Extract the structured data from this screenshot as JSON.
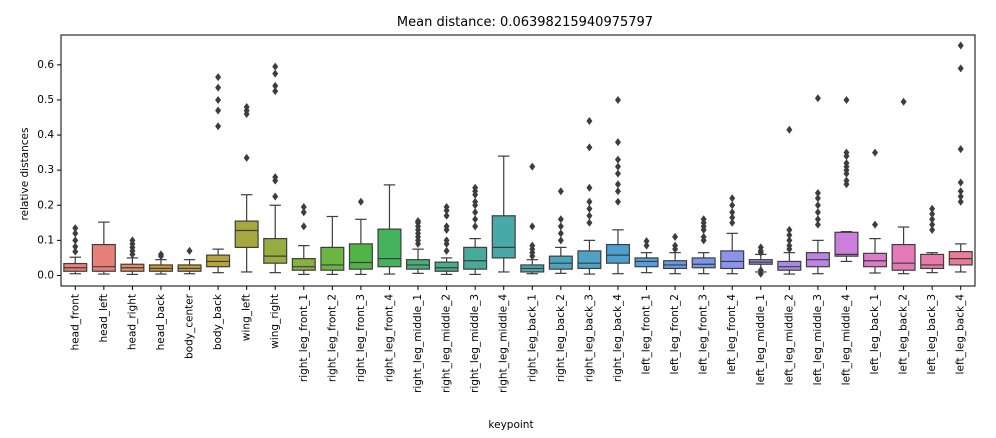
{
  "chart_data": {
    "type": "box",
    "title": "Mean distance: 0.06398215940975797",
    "xlabel": "keypoint",
    "ylabel": "relative distances",
    "ylim": [
      -0.03,
      0.685
    ],
    "yticks": [
      "0.0",
      "0.1",
      "0.2",
      "0.3",
      "0.4",
      "0.5",
      "0.6"
    ],
    "grid": false,
    "series": [
      {
        "name": "head_front",
        "color": "#e8807a",
        "whislo": 0.005,
        "q1": 0.012,
        "med": 0.022,
        "q3": 0.034,
        "whishi": 0.052,
        "fliers": [
          0.068,
          0.082,
          0.1,
          0.12,
          0.135
        ]
      },
      {
        "name": "head_left",
        "color": "#e8807a",
        "whislo": 0.004,
        "q1": 0.012,
        "med": 0.025,
        "q3": 0.088,
        "whishi": 0.152,
        "fliers": []
      },
      {
        "name": "head_right",
        "color": "#df8f63",
        "whislo": 0.003,
        "q1": 0.012,
        "med": 0.022,
        "q3": 0.032,
        "whishi": 0.05,
        "fliers": [
          0.06,
          0.07,
          0.08,
          0.09,
          0.1
        ]
      },
      {
        "name": "head_back",
        "color": "#c8982f",
        "whislo": 0.004,
        "q1": 0.012,
        "med": 0.02,
        "q3": 0.03,
        "whishi": 0.045,
        "fliers": [
          0.055,
          0.06
        ]
      },
      {
        "name": "body_center",
        "color": "#c29d39",
        "whislo": 0.005,
        "q1": 0.012,
        "med": 0.02,
        "q3": 0.03,
        "whishi": 0.045,
        "fliers": [
          0.07
        ]
      },
      {
        "name": "body_back",
        "color": "#b9a33d",
        "whislo": 0.008,
        "q1": 0.025,
        "med": 0.04,
        "q3": 0.058,
        "whishi": 0.075,
        "fliers": [
          0.425,
          0.47,
          0.5,
          0.535,
          0.565
        ]
      },
      {
        "name": "wing_left",
        "color": "#a5a93d",
        "whislo": 0.01,
        "q1": 0.08,
        "med": 0.128,
        "q3": 0.155,
        "whishi": 0.23,
        "fliers": [
          0.335,
          0.46,
          0.47,
          0.48
        ]
      },
      {
        "name": "wing_right",
        "color": "#97ad3f",
        "whislo": 0.008,
        "q1": 0.035,
        "med": 0.055,
        "q3": 0.105,
        "whishi": 0.2,
        "fliers": [
          0.225,
          0.27,
          0.28,
          0.525,
          0.54,
          0.575,
          0.595
        ]
      },
      {
        "name": "right_leg_front_1",
        "color": "#86b042",
        "whislo": 0.003,
        "q1": 0.015,
        "med": 0.025,
        "q3": 0.048,
        "whishi": 0.085,
        "fliers": [
          0.14,
          0.18,
          0.195
        ]
      },
      {
        "name": "right_leg_front_2",
        "color": "#6cb543",
        "whislo": 0.003,
        "q1": 0.015,
        "med": 0.03,
        "q3": 0.08,
        "whishi": 0.168,
        "fliers": []
      },
      {
        "name": "right_leg_front_3",
        "color": "#50b547",
        "whislo": 0.003,
        "q1": 0.018,
        "med": 0.037,
        "q3": 0.09,
        "whishi": 0.16,
        "fliers": [
          0.21
        ]
      },
      {
        "name": "right_leg_front_4",
        "color": "#44b35c",
        "whislo": 0.004,
        "q1": 0.025,
        "med": 0.048,
        "q3": 0.132,
        "whishi": 0.258,
        "fliers": []
      },
      {
        "name": "right_leg_middle_1",
        "color": "#46b07a",
        "whislo": 0.006,
        "q1": 0.018,
        "med": 0.03,
        "q3": 0.045,
        "whishi": 0.075,
        "fliers": [
          0.09,
          0.1,
          0.11,
          0.12,
          0.13,
          0.14,
          0.15,
          0.155
        ]
      },
      {
        "name": "right_leg_middle_2",
        "color": "#47ad8b",
        "whislo": 0.003,
        "q1": 0.012,
        "med": 0.022,
        "q3": 0.038,
        "whishi": 0.05,
        "fliers": [
          0.07,
          0.09,
          0.1,
          0.13,
          0.14,
          0.17,
          0.185,
          0.195
        ]
      },
      {
        "name": "right_leg_middle_3",
        "color": "#48ab99",
        "whislo": 0.003,
        "q1": 0.018,
        "med": 0.042,
        "q3": 0.08,
        "whishi": 0.105,
        "fliers": [
          0.14,
          0.16,
          0.18,
          0.2,
          0.21,
          0.23,
          0.24,
          0.25
        ]
      },
      {
        "name": "right_leg_middle_4",
        "color": "#49a9a6",
        "whislo": 0.01,
        "q1": 0.05,
        "med": 0.08,
        "q3": 0.17,
        "whishi": 0.34,
        "fliers": []
      },
      {
        "name": "right_leg_back_1",
        "color": "#4aa7b1",
        "whislo": 0.005,
        "q1": 0.01,
        "med": 0.02,
        "q3": 0.03,
        "whishi": 0.045,
        "fliers": [
          0.055,
          0.065,
          0.075,
          0.085,
          0.14,
          0.31
        ]
      },
      {
        "name": "right_leg_back_2",
        "color": "#4ba5bc",
        "whislo": 0.006,
        "q1": 0.018,
        "med": 0.035,
        "q3": 0.055,
        "whishi": 0.08,
        "fliers": [
          0.1,
          0.12,
          0.14,
          0.16,
          0.24
        ]
      },
      {
        "name": "right_leg_back_3",
        "color": "#4ca3c6",
        "whislo": 0.004,
        "q1": 0.02,
        "med": 0.035,
        "q3": 0.07,
        "whishi": 0.1,
        "fliers": [
          0.15,
          0.17,
          0.19,
          0.21,
          0.25,
          0.365,
          0.44
        ]
      },
      {
        "name": "right_leg_back_4",
        "color": "#4ea0d1",
        "whislo": 0.005,
        "q1": 0.035,
        "med": 0.058,
        "q3": 0.088,
        "whishi": 0.13,
        "fliers": [
          0.21,
          0.24,
          0.26,
          0.29,
          0.31,
          0.33,
          0.38,
          0.5
        ]
      },
      {
        "name": "left_leg_front_1",
        "color": "#569edc",
        "whislo": 0.008,
        "q1": 0.025,
        "med": 0.04,
        "q3": 0.05,
        "whishi": 0.065,
        "fliers": [
          0.085,
          0.098
        ]
      },
      {
        "name": "left_leg_front_2",
        "color": "#6b9ae4",
        "whislo": 0.005,
        "q1": 0.02,
        "med": 0.03,
        "q3": 0.042,
        "whishi": 0.065,
        "fliers": [
          0.075,
          0.085,
          0.11
        ]
      },
      {
        "name": "left_leg_front_3",
        "color": "#7c96e8",
        "whislo": 0.005,
        "q1": 0.022,
        "med": 0.032,
        "q3": 0.05,
        "whishi": 0.065,
        "fliers": [
          0.1,
          0.11,
          0.13,
          0.14,
          0.15,
          0.16
        ]
      },
      {
        "name": "left_leg_front_4",
        "color": "#8c93ea",
        "whislo": 0.005,
        "q1": 0.02,
        "med": 0.04,
        "q3": 0.07,
        "whishi": 0.12,
        "fliers": [
          0.15,
          0.165,
          0.18,
          0.2,
          0.22
        ]
      },
      {
        "name": "left_leg_middle_1",
        "color": "#9b8fea",
        "whislo": 0.01,
        "q1": 0.032,
        "med": 0.038,
        "q3": 0.045,
        "whishi": 0.06,
        "fliers": [
          0.005,
          0.015,
          0.065,
          0.07,
          0.08
        ]
      },
      {
        "name": "left_leg_middle_2",
        "color": "#ab8ae6",
        "whislo": 0.004,
        "q1": 0.015,
        "med": 0.025,
        "q3": 0.04,
        "whishi": 0.065,
        "fliers": [
          0.075,
          0.085,
          0.1,
          0.115,
          0.13,
          0.415
        ]
      },
      {
        "name": "left_leg_middle_3",
        "color": "#bc84e2",
        "whislo": 0.005,
        "q1": 0.025,
        "med": 0.045,
        "q3": 0.065,
        "whishi": 0.1,
        "fliers": [
          0.145,
          0.16,
          0.18,
          0.2,
          0.22,
          0.235,
          0.505
        ]
      },
      {
        "name": "left_leg_middle_4",
        "color": "#cc7edb",
        "whislo": 0.04,
        "q1": 0.055,
        "med": 0.06,
        "q3": 0.123,
        "whishi": 0.125,
        "fliers": [
          0.26,
          0.27,
          0.29,
          0.3,
          0.31,
          0.32,
          0.34,
          0.35,
          0.5
        ]
      },
      {
        "name": "left_leg_back_1",
        "color": "#dc7bc9",
        "whislo": 0.007,
        "q1": 0.025,
        "med": 0.042,
        "q3": 0.063,
        "whishi": 0.105,
        "fliers": [
          0.145,
          0.35
        ]
      },
      {
        "name": "left_leg_back_2",
        "color": "#e57ab8",
        "whislo": 0.005,
        "q1": 0.015,
        "med": 0.035,
        "q3": 0.088,
        "whishi": 0.138,
        "fliers": [
          0.495
        ]
      },
      {
        "name": "left_leg_back_3",
        "color": "#e77ca8",
        "whislo": 0.008,
        "q1": 0.02,
        "med": 0.03,
        "q3": 0.06,
        "whishi": 0.065,
        "fliers": [
          0.13,
          0.145,
          0.16,
          0.175,
          0.19
        ]
      },
      {
        "name": "left_leg_back_4",
        "color": "#e97d98",
        "whislo": 0.01,
        "q1": 0.03,
        "med": 0.048,
        "q3": 0.068,
        "whishi": 0.09,
        "fliers": [
          0.21,
          0.225,
          0.24,
          0.265,
          0.36,
          0.59,
          0.655
        ]
      }
    ]
  }
}
